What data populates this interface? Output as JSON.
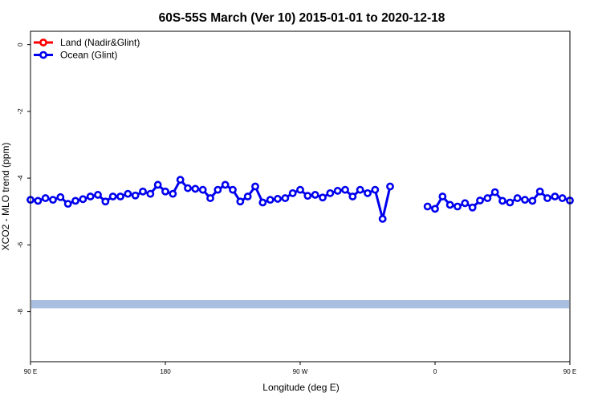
{
  "chart_data": {
    "type": "line",
    "title": "60S-55S March (Ver 10)   2015-01-01 to 2020-12-18",
    "xlabel": "Longitude (deg E)",
    "ylabel": "XCO2 - MLO trend (ppm)",
    "xlim": [
      90,
      450
    ],
    "ylim": [
      -9.5,
      0.4
    ],
    "x_ticks": [
      {
        "value": 90,
        "label": "90 E"
      },
      {
        "value": 180,
        "label": "180"
      },
      {
        "value": 270,
        "label": "90 W"
      },
      {
        "value": 360,
        "label": "0"
      },
      {
        "value": 450,
        "label": "90 E"
      },
      {
        "value": 540,
        "label": "180"
      }
    ],
    "y_ticks": [
      {
        "value": 0,
        "label": "0"
      },
      {
        "value": -2,
        "label": "-2"
      },
      {
        "value": -4,
        "label": "-4"
      },
      {
        "value": -6,
        "label": "-6"
      },
      {
        "value": -8,
        "label": "-8"
      }
    ],
    "legend": {
      "position": "top-left",
      "entries": [
        {
          "label": "Land (Nadir&Glint)",
          "color": "#ff0000"
        },
        {
          "label": "Ocean (Glint)",
          "color": "#0000ee"
        }
      ]
    },
    "band": {
      "y_from": -7.9,
      "y_to": -7.65,
      "color": "#a9bfe0"
    },
    "series": [
      {
        "name": "Land (Nadir&Glint)",
        "color": "#ff0000",
        "x": [],
        "y": []
      },
      {
        "name": "Ocean (Glint)",
        "color": "#0000ee",
        "segments": [
          {
            "x": [
              90,
              95,
              100,
              105,
              110,
              115,
              120,
              125,
              130,
              135,
              140,
              145,
              150,
              155,
              160,
              165,
              170,
              175,
              180,
              185,
              190,
              195,
              200,
              205,
              210,
              215,
              220,
              225,
              230,
              235,
              240,
              245,
              250,
              255,
              260,
              265,
              270,
              275,
              280,
              285,
              290,
              295,
              300,
              305,
              310,
              315,
              320,
              325,
              330,
              335,
              340,
              345,
              350
            ],
            "y": [
              -4.65,
              -4.68,
              -4.6,
              -4.65,
              -4.57,
              -4.77,
              -4.68,
              -4.63,
              -4.55,
              -4.5,
              -4.7,
              -4.55,
              -4.55,
              -4.47,
              -4.52,
              -4.4,
              -4.47,
              -4.2,
              -4.4,
              -4.47,
              -4.05,
              -4.3,
              -4.32,
              -4.35,
              -4.6,
              -4.35,
              -4.2,
              -4.35,
              -4.7,
              -4.55,
              -4.25,
              -4.73,
              -4.65,
              -4.62,
              -4.6,
              -4.45,
              -4.35,
              -4.53,
              -4.5,
              -4.58,
              -4.45,
              -4.38,
              -4.35,
              -4.55,
              -4.35,
              -4.45,
              -4.35,
              -5.22,
              -4.25,
              null,
              null,
              null,
              null
            ]
          },
          {
            "x": [
              355,
              360,
              365,
              370,
              375,
              380,
              385,
              390,
              395,
              400,
              405,
              410,
              415,
              420,
              425,
              430,
              435,
              440,
              445,
              450
            ],
            "y": [
              -4.85,
              -4.92,
              -4.55,
              -4.8,
              -4.85,
              -4.75,
              -4.88,
              -4.67,
              -4.6,
              -4.42,
              -4.68,
              -4.73,
              -4.6,
              -4.65,
              -4.68,
              -4.4,
              -4.6,
              -4.55,
              -4.6,
              -4.67
            ]
          }
        ]
      }
    ]
  }
}
